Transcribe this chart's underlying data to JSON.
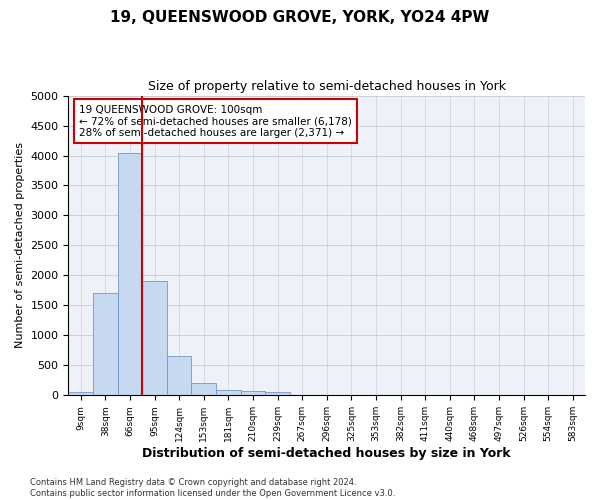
{
  "title_line1": "19, QUEENSWOOD GROVE, YORK, YO24 4PW",
  "title_line2": "Size of property relative to semi-detached houses in York",
  "xlabel": "Distribution of semi-detached houses by size in York",
  "ylabel": "Number of semi-detached properties",
  "annotation_line1": "19 QUEENSWOOD GROVE: 100sqm",
  "annotation_line2": "← 72% of semi-detached houses are smaller (6,178)",
  "annotation_line3": "28% of semi-detached houses are larger (2,371) →",
  "footer_line1": "Contains HM Land Registry data © Crown copyright and database right 2024.",
  "footer_line2": "Contains public sector information licensed under the Open Government Licence v3.0.",
  "bin_labels": [
    "9sqm",
    "38sqm",
    "66sqm",
    "95sqm",
    "124sqm",
    "153sqm",
    "181sqm",
    "210sqm",
    "239sqm",
    "267sqm",
    "296sqm",
    "325sqm",
    "353sqm",
    "382sqm",
    "411sqm",
    "440sqm",
    "468sqm",
    "497sqm",
    "526sqm",
    "554sqm",
    "583sqm"
  ],
  "bin_values": [
    50,
    1700,
    4050,
    1900,
    650,
    200,
    90,
    70,
    50,
    10,
    5,
    3,
    2,
    1,
    1,
    0,
    0,
    0,
    0,
    0,
    0
  ],
  "red_line_bin_index": 3,
  "bar_color": "#c6d9f0",
  "bar_edge_color": "#7398c4",
  "red_line_color": "#cc0000",
  "grid_color": "#c8d0e0",
  "annotation_box_edge_color": "#cc0000",
  "ylim": [
    0,
    5000
  ],
  "yticks": [
    0,
    500,
    1000,
    1500,
    2000,
    2500,
    3000,
    3500,
    4000,
    4500,
    5000
  ],
  "background_color": "#ffffff",
  "plot_bg_color": "#eef2f8"
}
